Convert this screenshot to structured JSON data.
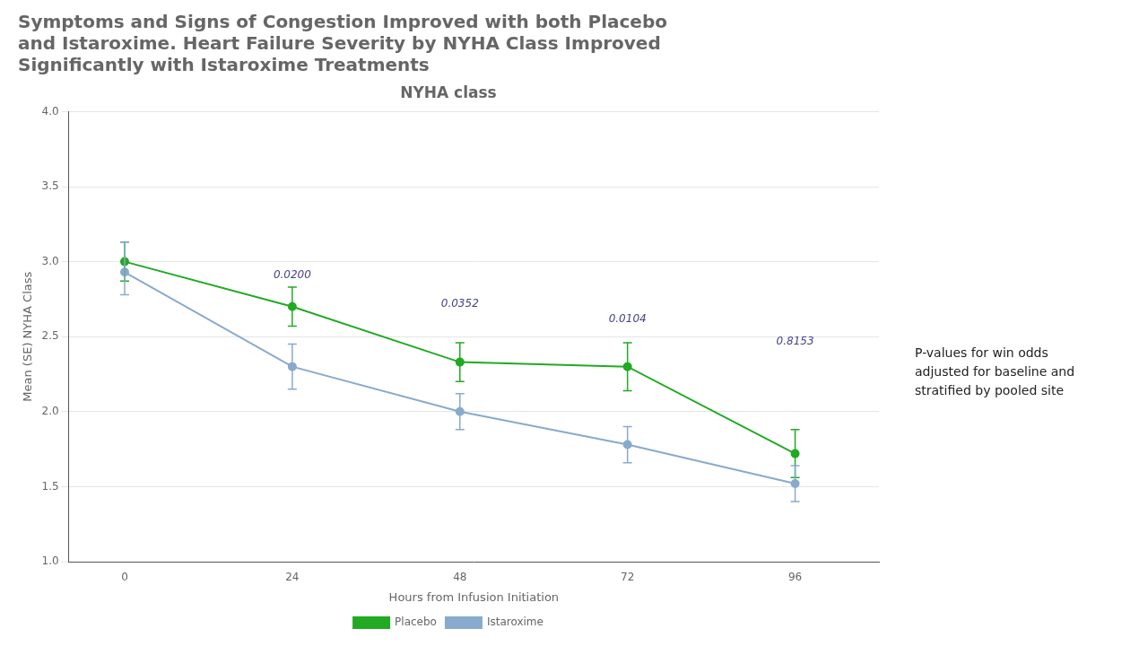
{
  "chart_data": {
    "type": "line",
    "title": "Symptoms and Signs of Congestion Improved with both Placebo\nand Istaroxime. Heart Failure Severity by NYHA Class Improved\nSignificantly with Istaroxime Treatments",
    "subtitle": "NYHA class",
    "x_label": "Hours from Infusion Initiation",
    "y_label": "Mean (SE) NYHA Class",
    "x": [
      0,
      24,
      48,
      72,
      96
    ],
    "series": [
      {
        "name": "Placebo",
        "color": "#22aa22",
        "marker": "circle",
        "values": [
          3.0,
          2.7,
          2.33,
          2.3,
          1.72
        ],
        "error_low": [
          0.13,
          0.13,
          0.13,
          0.16,
          0.16
        ],
        "error_high": [
          0.13,
          0.13,
          0.13,
          0.16,
          0.16
        ]
      },
      {
        "name": "Istaroxime",
        "color": "#88aacc",
        "marker": "circle",
        "values": [
          2.93,
          2.3,
          2.0,
          1.78,
          1.52
        ],
        "error_low": [
          0.15,
          0.15,
          0.12,
          0.12,
          0.12
        ],
        "error_high": [
          0.2,
          0.15,
          0.12,
          0.12,
          0.12
        ]
      }
    ],
    "xlim": [
      -8,
      108
    ],
    "xticks": [
      0,
      24,
      48,
      72,
      96
    ],
    "ylim": [
      1.0,
      4.0
    ],
    "yticks": [
      {
        "value": 1.0,
        "label": "1.0"
      },
      1.5,
      {
        "value": 2.0,
        "label": "2.0"
      },
      2.5,
      {
        "value": 3.0,
        "label": "3.0"
      },
      3.5,
      {
        "value": 4.0,
        "label": "4.0"
      }
    ],
    "grid": "y",
    "legend": "bottom",
    "annotations": [
      {
        "x": 24,
        "y": 2.87,
        "text": "0.0200"
      },
      {
        "x": 48,
        "y": 2.68,
        "text": "0.0352"
      },
      {
        "x": 72,
        "y": 2.58,
        "text": "0.0104"
      },
      {
        "x": 96,
        "y": 2.43,
        "text": "0.8153"
      }
    ],
    "note": "P-values for win odds\nadjusted for baseline and\nstratified by pooled site"
  }
}
